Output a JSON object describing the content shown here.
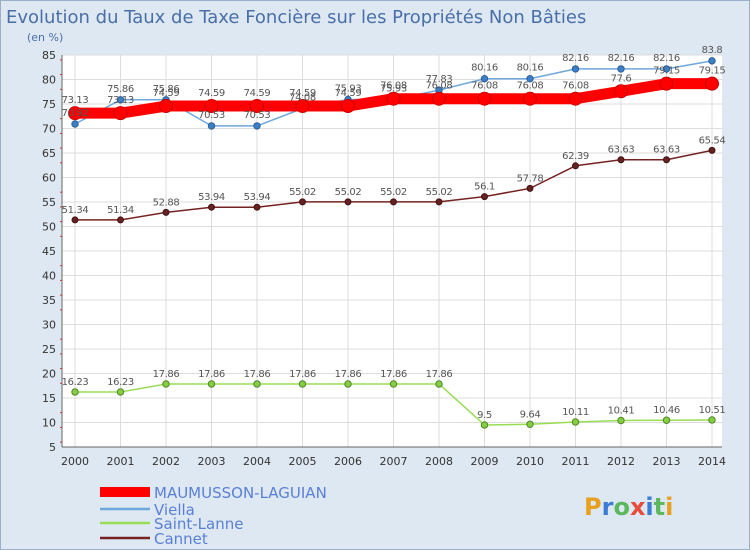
{
  "chart_data": {
    "type": "line",
    "title": "Evolution du Taux de Taxe Foncière sur les Propriétés Non Bâties",
    "ylabel": "(en %)",
    "xlabel": "",
    "ylim": [
      5,
      85
    ],
    "yticks": [
      5,
      10,
      15,
      20,
      25,
      30,
      35,
      40,
      45,
      50,
      55,
      60,
      65,
      70,
      75,
      80,
      85
    ],
    "categories": [
      "2000",
      "2001",
      "2002",
      "2003",
      "2004",
      "2005",
      "2006",
      "2007",
      "2008",
      "2009",
      "2010",
      "2011",
      "2012",
      "2013",
      "2014"
    ],
    "series": [
      {
        "name": "MAUMUSSON-LAGUIAN",
        "color": "#ff0000",
        "values": [
          73.13,
          73.13,
          74.59,
          74.59,
          74.59,
          74.59,
          74.59,
          76.08,
          76.08,
          76.08,
          76.08,
          76.08,
          77.6,
          79.15,
          79.15
        ],
        "labels": [
          "73.13",
          "73.13",
          "74.59",
          "74.59",
          "74.59",
          "74.59",
          "74.59",
          "76.08",
          "76.08",
          "76.08",
          "76.08",
          "76.08",
          "77.6",
          "79.15",
          "79.15"
        ]
      },
      {
        "name": "Viella",
        "color": "#6fa8dc",
        "values": [
          70.92,
          75.86,
          75.86,
          70.53,
          70.53,
          74.08,
          75.93,
          75.93,
          77.83,
          80.16,
          80.16,
          82.16,
          82.16,
          82.16,
          83.8
        ],
        "labels": [
          "70.92",
          "75.86",
          "75.86",
          "70.53",
          "70.53",
          "74.08",
          "75.93",
          "75.93",
          "77.83",
          "80.16",
          "80.16",
          "82.16",
          "82.16",
          "82.16",
          "83.8"
        ]
      },
      {
        "name": "Saint-Lanne",
        "color": "#99dd55",
        "values": [
          16.23,
          16.23,
          17.86,
          17.86,
          17.86,
          17.86,
          17.86,
          17.86,
          17.86,
          9.5,
          9.64,
          10.11,
          10.41,
          10.46,
          10.51
        ],
        "labels": [
          "16.23",
          "16.23",
          "17.86",
          "17.86",
          "17.86",
          "17.86",
          "17.86",
          "17.86",
          "17.86",
          "9.5",
          "9.64",
          "10.11",
          "10.41",
          "10.46",
          "10.51"
        ]
      },
      {
        "name": "Cannet",
        "color": "#772222",
        "values": [
          51.34,
          51.34,
          52.88,
          53.94,
          53.94,
          55.02,
          55.02,
          55.02,
          55.02,
          56.1,
          57.78,
          62.39,
          63.63,
          63.63,
          65.54
        ],
        "labels": [
          "51.34",
          "51.34",
          "52.88",
          "53.94",
          "53.94",
          "55.02",
          "55.02",
          "55.02",
          "55.02",
          "56.1",
          "57.78",
          "62.39",
          "63.63",
          "63.63",
          "65.54"
        ]
      }
    ],
    "legend_position": "bottom-left",
    "grid": true
  },
  "logo_text": "Proxiti"
}
